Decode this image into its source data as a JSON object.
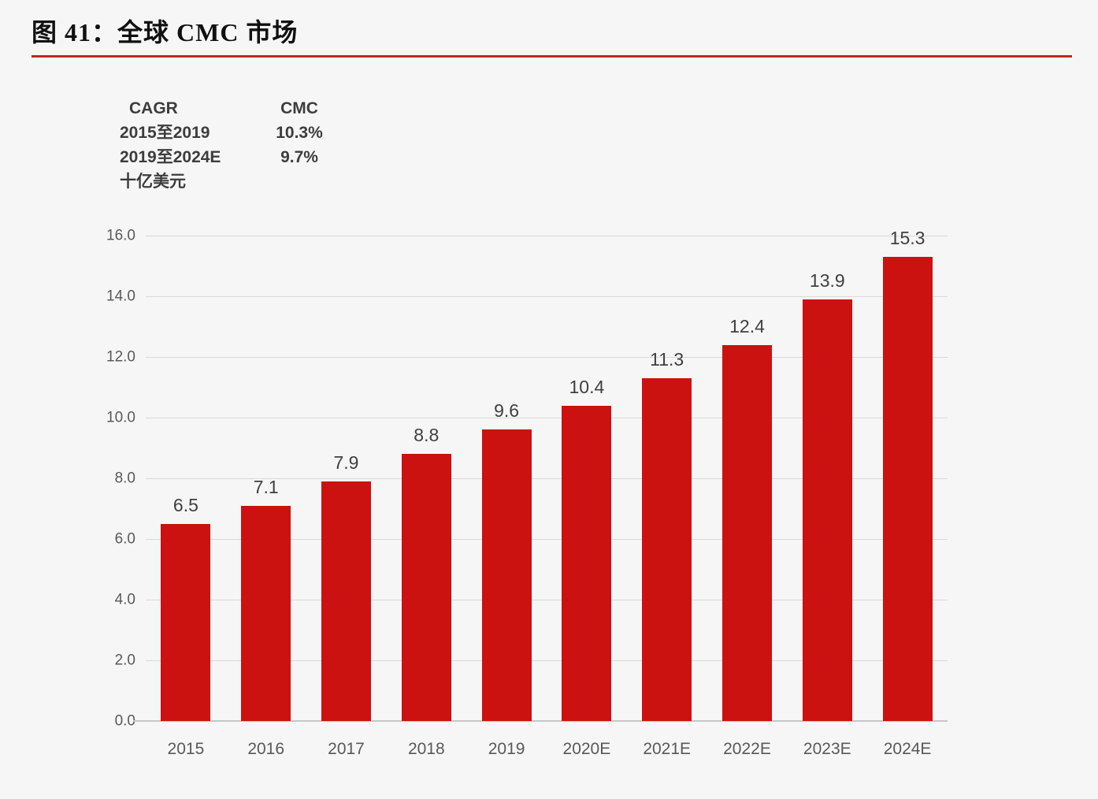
{
  "figure": {
    "title": "图 41：全球 CMC 市场",
    "underline_color": "#c9231b"
  },
  "stats_table": {
    "header": {
      "col1": "CAGR",
      "col2": "CMC"
    },
    "rows": [
      {
        "label": "2015至2019",
        "value": "10.3%"
      },
      {
        "label": "2019至2024E",
        "value": "9.7%"
      }
    ],
    "unit_label": "十亿美元"
  },
  "chart_data": {
    "type": "bar",
    "categories": [
      "2015",
      "2016",
      "2017",
      "2018",
      "2019",
      "2020E",
      "2021E",
      "2022E",
      "2023E",
      "2024E"
    ],
    "values": [
      6.5,
      7.1,
      7.9,
      8.8,
      9.6,
      10.4,
      11.3,
      12.4,
      13.9,
      15.3
    ],
    "value_labels": [
      "6.5",
      "7.1",
      "7.9",
      "8.8",
      "9.6",
      "10.4",
      "11.3",
      "12.4",
      "13.9",
      "15.3"
    ],
    "title": "图 41：全球 CMC 市场",
    "xlabel": "",
    "ylabel": "十亿美元",
    "ylim": [
      0,
      16
    ],
    "ytick_step": 2,
    "ytick_labels": [
      "0.0",
      "2.0",
      "4.0",
      "6.0",
      "8.0",
      "10.0",
      "12.0",
      "14.0",
      "16.0"
    ],
    "bar_color": "#cc1111",
    "grid": true,
    "legend_position": "none"
  }
}
